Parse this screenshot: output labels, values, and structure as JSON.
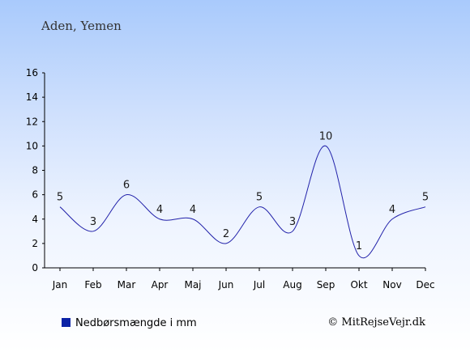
{
  "chart_data": {
    "type": "line",
    "subtitle": "Aden, Yemen",
    "categories": [
      "Jan",
      "Feb",
      "Mar",
      "Apr",
      "Maj",
      "Jun",
      "Jul",
      "Aug",
      "Sep",
      "Okt",
      "Nov",
      "Dec"
    ],
    "series": [
      {
        "name": "Nedbørsmængde i mm",
        "values": [
          5,
          3,
          6,
          4,
          4,
          2,
          5,
          3,
          10,
          1,
          4,
          5
        ]
      }
    ],
    "data_labels": [
      "5",
      "3",
      "6",
      "4",
      "4",
      "2",
      "5",
      "3",
      "10",
      "1",
      "4",
      "5"
    ],
    "yticks": [
      0,
      2,
      4,
      6,
      8,
      10,
      12,
      14,
      16
    ],
    "ylim": [
      0,
      16
    ],
    "xlabel": "",
    "ylabel": "",
    "grid": false,
    "legend_position": "bottom-left",
    "colors": {
      "line": "#2222aa",
      "legend_marker": "#0b22a6"
    }
  },
  "legend": {
    "label": "Nedbørsmængde i mm"
  },
  "copyright": "© MitRejseVejr.dk"
}
